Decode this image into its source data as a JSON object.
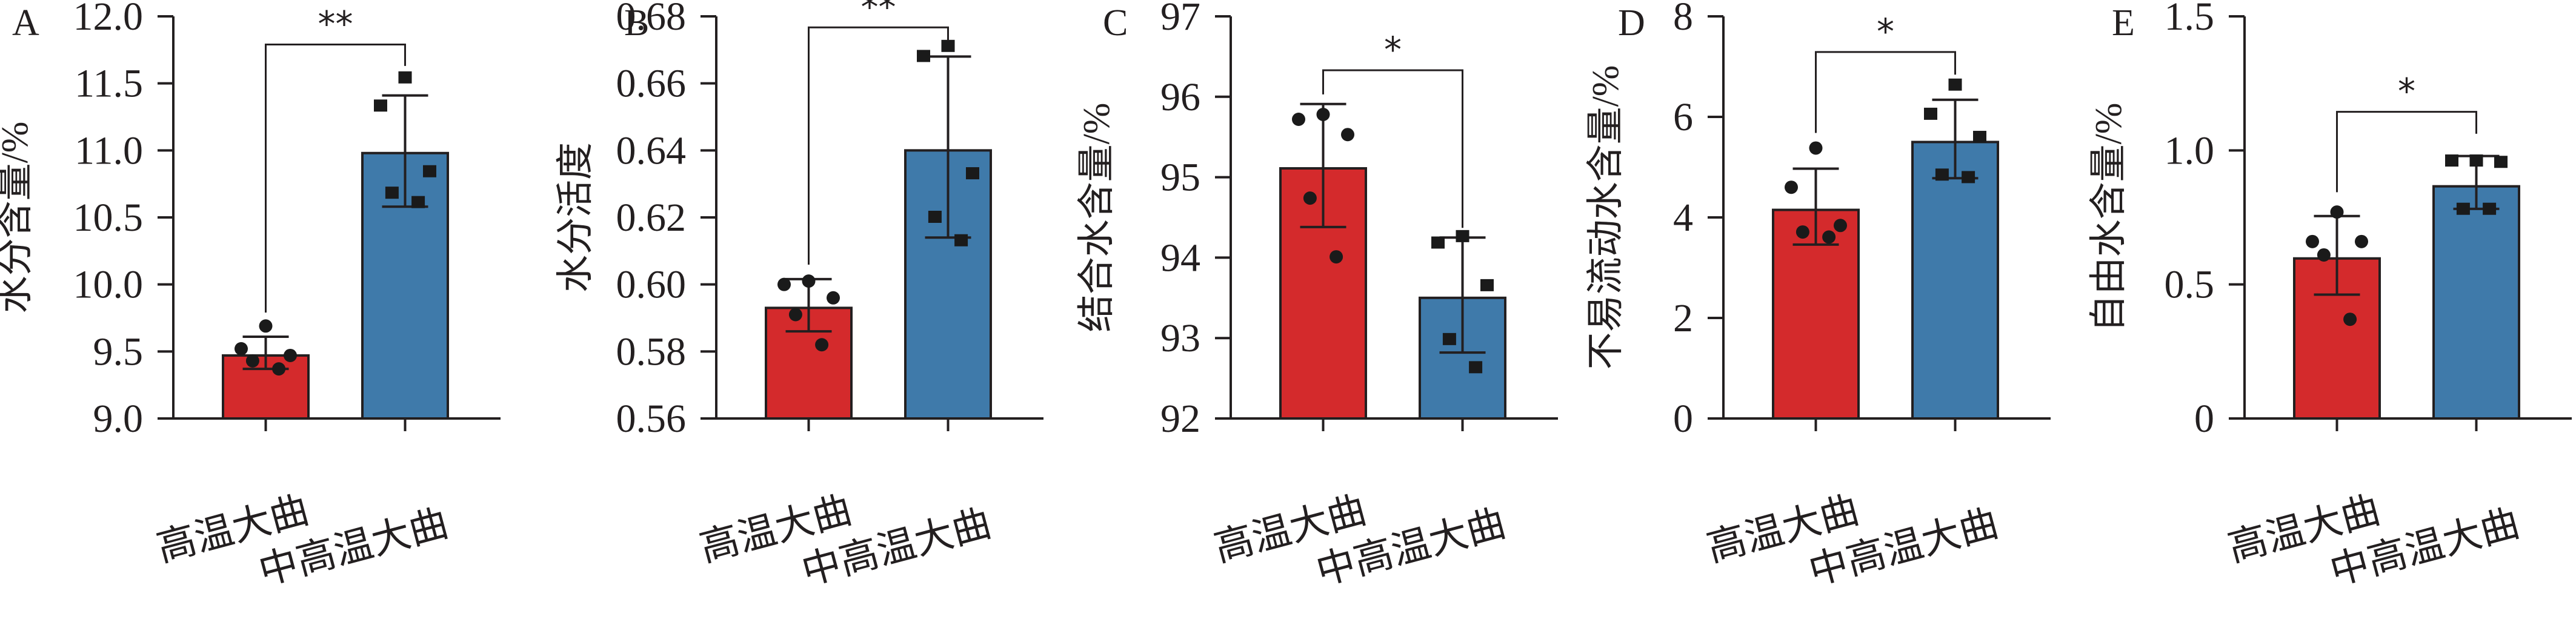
{
  "figure": {
    "categories": [
      "高温大曲",
      "中高温大曲"
    ],
    "colors": {
      "high_temp": "#D42A2C",
      "mid_high_temp": "#3F7AAA",
      "points": "#1A1A1A",
      "axis": "#231F20"
    }
  },
  "chart_data": [
    {
      "panel": "A",
      "type": "bar",
      "ylabel": "水分含量/%",
      "categories": [
        "高温大曲",
        "中高温大曲"
      ],
      "ylim": [
        9.0,
        12.0
      ],
      "yticks": [
        9.0,
        9.5,
        10.0,
        10.5,
        11.0,
        11.5,
        12.0
      ],
      "ytick_labels": [
        "9.0",
        "9.5",
        "10.0",
        "10.5",
        "11.0",
        "11.5",
        "12.0"
      ],
      "series": [
        {
          "name": "高温大曲",
          "mean": 9.47,
          "sd_low": 9.37,
          "sd_high": 9.61,
          "points": [
            9.69,
            9.52,
            9.47,
            9.43,
            9.37
          ],
          "marker": "circle"
        },
        {
          "name": "中高温大曲",
          "mean": 10.98,
          "sd_low": 10.58,
          "sd_high": 11.41,
          "points": [
            11.54,
            11.33,
            10.84,
            10.68,
            10.61
          ],
          "marker": "square"
        }
      ],
      "significance": {
        "label": "**",
        "bracket_y": 11.79,
        "left_end": 9.79,
        "right_end": 11.63
      }
    },
    {
      "panel": "B",
      "type": "bar",
      "ylabel": "水分活度",
      "categories": [
        "高温大曲",
        "中高温大曲"
      ],
      "ylim": [
        0.56,
        0.68
      ],
      "yticks": [
        0.56,
        0.58,
        0.6,
        0.62,
        0.64,
        0.66,
        0.68
      ],
      "ytick_labels": [
        "0.56",
        "0.58",
        "0.60",
        "0.62",
        "0.64",
        "0.66",
        "0.68"
      ],
      "series": [
        {
          "name": "高温大曲",
          "mean": 0.593,
          "sd_low": 0.586,
          "sd_high": 0.6016,
          "points": [
            0.601,
            0.6,
            0.596,
            0.591,
            0.582
          ],
          "marker": "circle"
        },
        {
          "name": "中高温大曲",
          "mean": 0.64,
          "sd_low": 0.614,
          "sd_high": 0.668,
          "points": [
            0.671,
            0.668,
            0.633,
            0.62,
            0.613
          ],
          "marker": "square"
        }
      ],
      "significance": {
        "label": "**",
        "bracket_y": 0.6767,
        "left_end": 0.6059,
        "right_end": 0.6727
      }
    },
    {
      "panel": "C",
      "type": "bar",
      "ylabel": "结合水含量/%",
      "categories": [
        "高温大曲",
        "中高温大曲"
      ],
      "ylim": [
        92,
        97
      ],
      "yticks": [
        92,
        93,
        94,
        95,
        96,
        97
      ],
      "ytick_labels": [
        "92",
        "93",
        "94",
        "95",
        "96",
        "97"
      ],
      "series": [
        {
          "name": "高温大曲",
          "mean": 95.11,
          "sd_low": 94.38,
          "sd_high": 95.91,
          "points": [
            95.78,
            95.72,
            95.53,
            94.74,
            94.01
          ],
          "marker": "circle"
        },
        {
          "name": "中高温大曲",
          "mean": 93.5,
          "sd_low": 92.82,
          "sd_high": 94.25,
          "points": [
            94.26,
            94.18,
            93.65,
            92.98,
            92.63
          ],
          "marker": "square"
        }
      ],
      "significance": {
        "label": "*",
        "bracket_y": 96.33,
        "left_end": 96.03,
        "right_end": 94.37
      }
    },
    {
      "panel": "D",
      "type": "bar",
      "ylabel": "不易流动水含量/%",
      "categories": [
        "高温大曲",
        "中高温大曲"
      ],
      "ylim": [
        0,
        8
      ],
      "yticks": [
        0,
        2,
        4,
        6,
        8
      ],
      "ytick_labels": [
        "0",
        "2",
        "4",
        "6",
        "8"
      ],
      "series": [
        {
          "name": "高温大曲",
          "mean": 4.15,
          "sd_low": 3.46,
          "sd_high": 4.97,
          "points": [
            5.38,
            4.6,
            3.84,
            3.71,
            3.61
          ],
          "marker": "circle"
        },
        {
          "name": "中高温大曲",
          "mean": 5.5,
          "sd_low": 4.78,
          "sd_high": 6.34,
          "points": [
            6.63,
            6.05,
            5.59,
            4.84,
            4.79
          ],
          "marker": "square"
        }
      ],
      "significance": {
        "label": "*",
        "bracket_y": 7.29,
        "left_end": 5.68,
        "right_end": 6.84
      }
    },
    {
      "panel": "E",
      "type": "bar",
      "ylabel": "自由水含量/%",
      "categories": [
        "高温大曲",
        "中高温大曲"
      ],
      "ylim": [
        0,
        1.5
      ],
      "yticks": [
        0,
        0.5,
        1.0,
        1.5
      ],
      "ytick_labels": [
        "0",
        "0.5",
        "1.0",
        "1.5"
      ],
      "series": [
        {
          "name": "高温大曲",
          "mean": 0.597,
          "sd_low": 0.462,
          "sd_high": 0.755,
          "points": [
            0.77,
            0.66,
            0.66,
            0.61,
            0.37
          ],
          "marker": "circle"
        },
        {
          "name": "中高温大曲",
          "mean": 0.866,
          "sd_low": 0.782,
          "sd_high": 0.979,
          "points": [
            0.96,
            0.96,
            0.955,
            0.78,
            0.78
          ],
          "marker": "square"
        }
      ],
      "significance": {
        "label": "*",
        "bracket_y": 1.144,
        "left_end": 0.844,
        "right_end": 1.062
      }
    }
  ]
}
